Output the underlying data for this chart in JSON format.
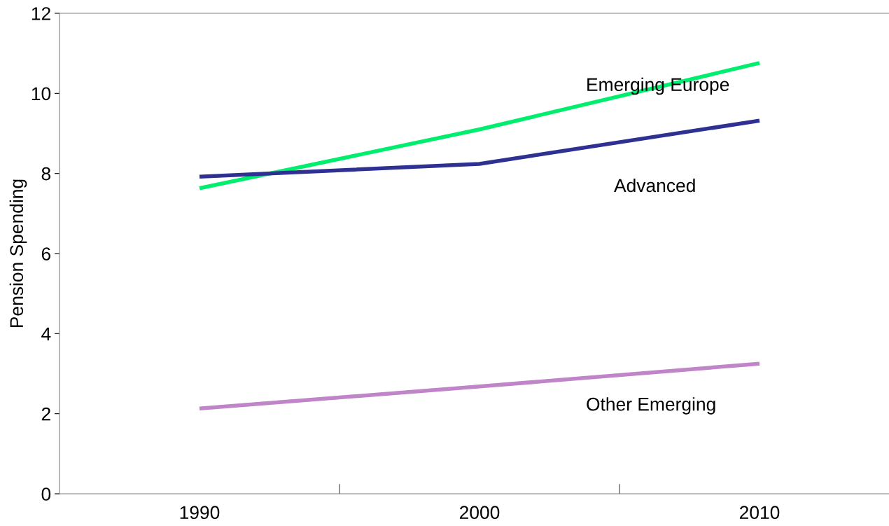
{
  "chart_data": {
    "type": "line",
    "ylabel": "Pension Spending",
    "categories": [
      "1990",
      "2000",
      "2010"
    ],
    "series": [
      {
        "name": "Emerging Europe",
        "color": "#00ee6e",
        "values": [
          7.63,
          9.1,
          10.76
        ]
      },
      {
        "name": "Advanced",
        "color": "#2e3192",
        "values": [
          7.92,
          8.24,
          9.32
        ]
      },
      {
        "name": "Other Emerging",
        "color": "#c084c8",
        "values": [
          2.13,
          2.68,
          3.25
        ]
      }
    ],
    "ylim": [
      0,
      12
    ],
    "yticks": [
      0,
      2,
      4,
      6,
      8,
      10,
      12
    ],
    "grid": false,
    "legend": false,
    "marker": "none",
    "line_style": "solid"
  }
}
